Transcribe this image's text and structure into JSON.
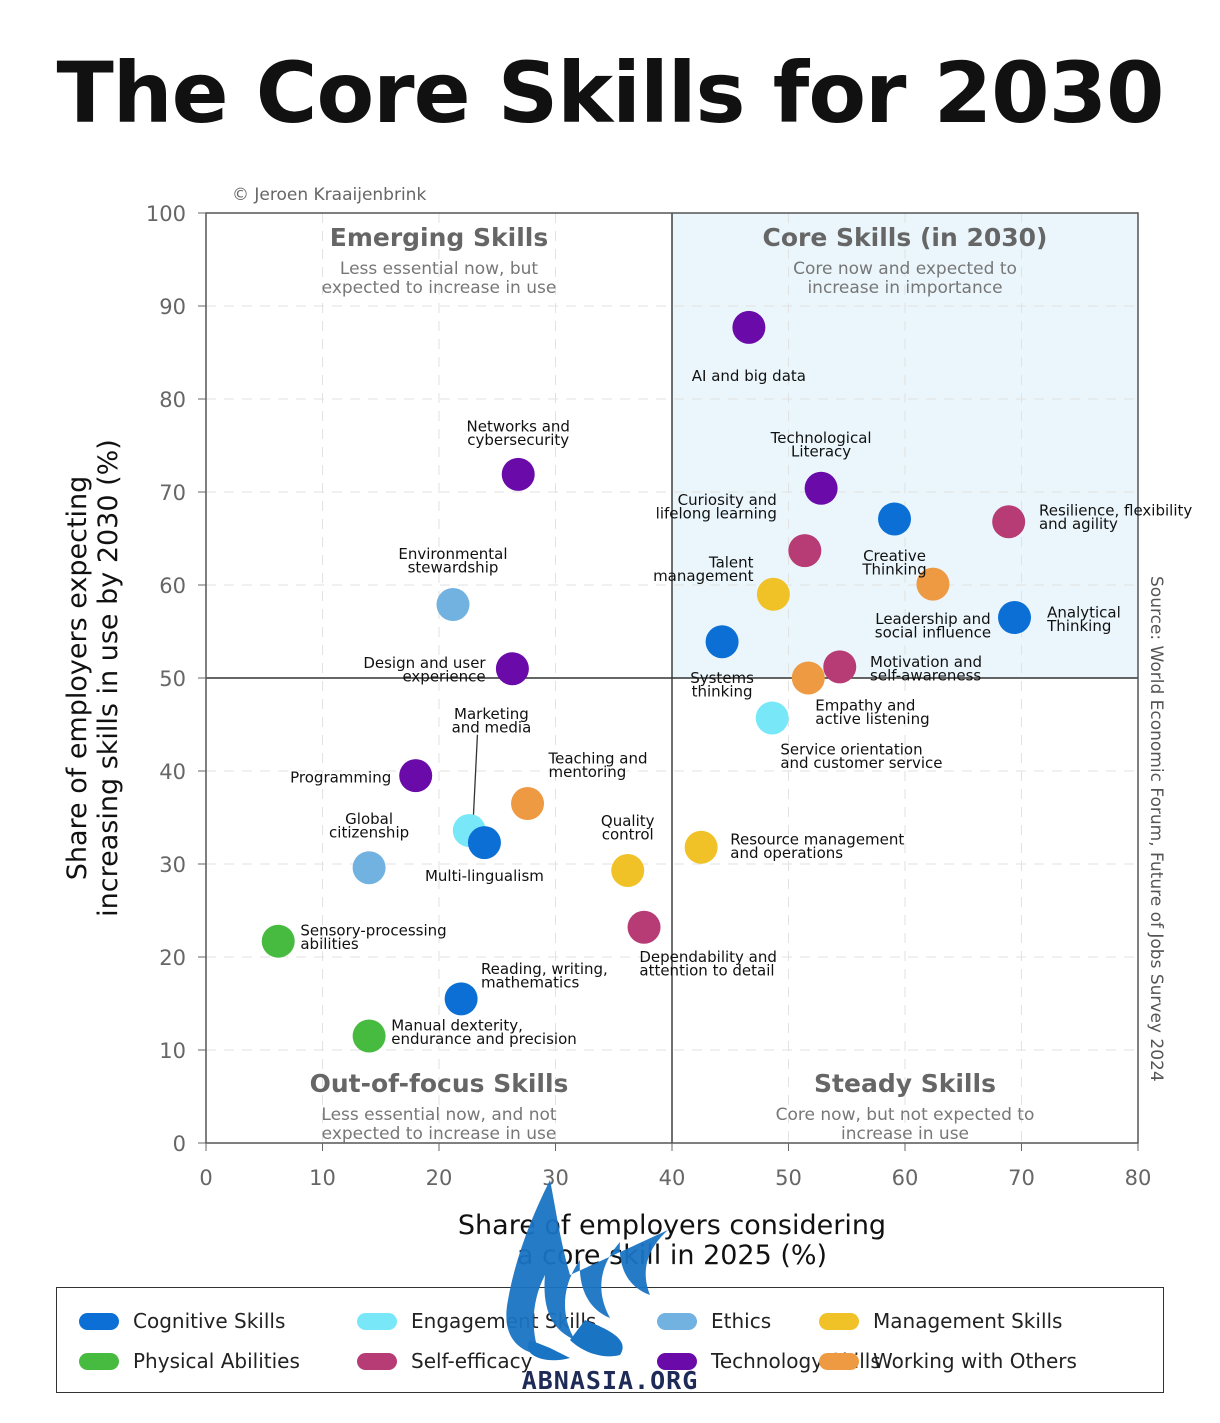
{
  "page": {
    "title": "The Core Skills for 2030",
    "copyright": "© Jeroen Kraaijenbrink",
    "source": "Source: World Economic Forum, Future of Jobs Survey 2024",
    "watermark": "ABNASIA.ORG"
  },
  "chart_data": {
    "type": "scatter",
    "xlabel": "Share of employers considering a core skill in 2025 (%)",
    "ylabel": "Share of employers expecting increasing skills in use by 2030 (%)",
    "xlim": [
      0,
      80
    ],
    "ylim": [
      0,
      100
    ],
    "xticks": [
      0,
      10,
      20,
      30,
      40,
      50,
      60,
      70,
      80
    ],
    "yticks": [
      0,
      10,
      20,
      30,
      40,
      50,
      60,
      70,
      80,
      90,
      100
    ],
    "grid": true,
    "dividers": {
      "x": 40,
      "y": 50
    },
    "quadrants": [
      {
        "title": "Emerging Skills",
        "subtitle": [
          "Less essential now, but",
          "expected to increase in use"
        ],
        "position": "top-left",
        "highlight": false
      },
      {
        "title": "Core Skills (in 2030)",
        "subtitle": [
          "Core now and expected to",
          "increase in importance"
        ],
        "position": "top-right",
        "highlight": true
      },
      {
        "title": "Out-of-focus Skills",
        "subtitle": [
          "Less essential now, and not",
          "expected to increase in use"
        ],
        "position": "bottom-left",
        "highlight": false
      },
      {
        "title": "Steady Skills",
        "subtitle": [
          "Core now, but not expected to",
          "increase in use"
        ],
        "position": "bottom-right",
        "highlight": false
      }
    ],
    "legend": [
      {
        "name": "Cognitive Skills",
        "color": "#0b6fd6"
      },
      {
        "name": "Engagement Skills",
        "color": "#78e8f8"
      },
      {
        "name": "Ethics",
        "color": "#72b2e0"
      },
      {
        "name": "Management Skills",
        "color": "#f0c227"
      },
      {
        "name": "Physical Abilities",
        "color": "#47bb3f"
      },
      {
        "name": "Self-efficacy",
        "color": "#b73b74"
      },
      {
        "name": "Technology Skills",
        "color": "#6a0aa8"
      },
      {
        "name": "Working with Others",
        "color": "#ee9a42"
      }
    ],
    "points": [
      {
        "label": [
          "AI and big data"
        ],
        "x": 46.6,
        "y": 87.7,
        "category": "Technology Skills",
        "anchor": "middle",
        "lx": 46.6,
        "ly": 82.5
      },
      {
        "label": [
          "Networks and",
          "cybersecurity"
        ],
        "x": 26.8,
        "y": 71.9,
        "category": "Technology Skills",
        "anchor": "middle",
        "lx": 26.8,
        "ly": 76.3
      },
      {
        "label": [
          "Technological",
          "Literacy"
        ],
        "x": 52.8,
        "y": 70.4,
        "category": "Technology Skills",
        "anchor": "middle",
        "lx": 52.8,
        "ly": 75.1
      },
      {
        "label": [
          "Curiosity and",
          "lifelong learning"
        ],
        "x": 51.4,
        "y": 63.7,
        "category": "Self-efficacy",
        "anchor": "end",
        "lx": 49.0,
        "ly": 68.4
      },
      {
        "label": [
          "Creative",
          "Thinking"
        ],
        "x": 59.1,
        "y": 67.1,
        "category": "Cognitive Skills",
        "anchor": "middle",
        "lx": 59.1,
        "ly": 62.4
      },
      {
        "label": [
          "Resilience, flexibility",
          "and agility"
        ],
        "x": 68.9,
        "y": 66.8,
        "category": "Self-efficacy",
        "anchor": "start",
        "lx": 71.5,
        "ly": 67.3
      },
      {
        "label": [
          "Talent",
          "management"
        ],
        "x": 48.7,
        "y": 59.0,
        "category": "Management Skills",
        "anchor": "end",
        "lx": 47.0,
        "ly": 61.7
      },
      {
        "label": [
          "Leadership and",
          "social influence"
        ],
        "x": 62.4,
        "y": 60.1,
        "category": "Working with Others",
        "anchor": "middle",
        "lx": 62.4,
        "ly": 55.6
      },
      {
        "label": [
          "Analytical",
          "Thinking"
        ],
        "x": 69.4,
        "y": 56.5,
        "category": "Cognitive Skills",
        "anchor": "start",
        "lx": 72.2,
        "ly": 56.3
      },
      {
        "label": [
          "Environmental",
          "stewardship"
        ],
        "x": 21.2,
        "y": 57.9,
        "category": "Ethics",
        "anchor": "middle",
        "lx": 21.2,
        "ly": 62.6
      },
      {
        "label": [
          "Systems",
          "thinking"
        ],
        "x": 44.3,
        "y": 53.9,
        "category": "Cognitive Skills",
        "anchor": "middle",
        "lx": 44.3,
        "ly": 49.3
      },
      {
        "label": [
          "Design and user",
          "experience"
        ],
        "x": 26.3,
        "y": 51.0,
        "category": "Technology Skills",
        "anchor": "end",
        "lx": 24.0,
        "ly": 50.9
      },
      {
        "label": [
          "Motivation and",
          "self-awareness"
        ],
        "x": 54.4,
        "y": 51.2,
        "category": "Self-efficacy",
        "anchor": "start",
        "lx": 57.0,
        "ly": 51.0
      },
      {
        "label": [
          "Empathy and",
          "active listening"
        ],
        "x": 51.7,
        "y": 50.0,
        "category": "Working with Others",
        "anchor": "start",
        "lx": 52.3,
        "ly": 46.3
      },
      {
        "label": [
          "Service orientation",
          "and customer service"
        ],
        "x": 48.6,
        "y": 45.7,
        "category": "Engagement Skills",
        "anchor": "start",
        "lx": 49.3,
        "ly": 41.6
      },
      {
        "label": [
          "Marketing",
          "and media"
        ],
        "x": 22.6,
        "y": 33.6,
        "category": "Engagement Skills",
        "anchor": "middle",
        "lx": 24.5,
        "ly": 45.4
      },
      {
        "label": [
          "Programming"
        ],
        "x": 18.0,
        "y": 39.5,
        "category": "Technology Skills",
        "anchor": "end",
        "lx": 15.9,
        "ly": 39.3
      },
      {
        "label": [
          "Teaching and",
          "mentoring"
        ],
        "x": 27.6,
        "y": 36.5,
        "category": "Working with Others",
        "anchor": "start",
        "lx": 29.4,
        "ly": 40.6
      },
      {
        "label": [
          "Global",
          "citizenship"
        ],
        "x": 14.0,
        "y": 29.6,
        "category": "Ethics",
        "anchor": "middle",
        "lx": 14.0,
        "ly": 34.1
      },
      {
        "label": [
          "Multi-lingualism"
        ],
        "x": 23.9,
        "y": 32.3,
        "category": "Cognitive Skills",
        "anchor": "middle",
        "lx": 23.9,
        "ly": 28.7
      },
      {
        "label": [
          "Quality",
          "control"
        ],
        "x": 36.2,
        "y": 29.3,
        "category": "Management Skills",
        "anchor": "middle",
        "lx": 36.2,
        "ly": 33.9
      },
      {
        "label": [
          "Resource management",
          "and operations"
        ],
        "x": 42.5,
        "y": 31.8,
        "category": "Management Skills",
        "anchor": "start",
        "lx": 45.0,
        "ly": 31.9
      },
      {
        "label": [
          "Sensory-processing",
          "abilities"
        ],
        "x": 6.2,
        "y": 21.7,
        "category": "Physical Abilities",
        "anchor": "start",
        "lx": 8.1,
        "ly": 22.1
      },
      {
        "label": [
          "Dependability and",
          "attention to detail"
        ],
        "x": 37.6,
        "y": 23.2,
        "category": "Self-efficacy",
        "anchor": "start",
        "lx": 37.2,
        "ly": 19.3
      },
      {
        "label": [
          "Reading, writing,",
          "mathematics"
        ],
        "x": 21.9,
        "y": 15.5,
        "category": "Cognitive Skills",
        "anchor": "start",
        "lx": 23.6,
        "ly": 18.0
      },
      {
        "label": [
          "Manual dexterity,",
          "endurance and precision"
        ],
        "x": 14.0,
        "y": 11.5,
        "category": "Physical Abilities",
        "anchor": "start",
        "lx": 15.9,
        "ly": 11.9
      }
    ]
  }
}
